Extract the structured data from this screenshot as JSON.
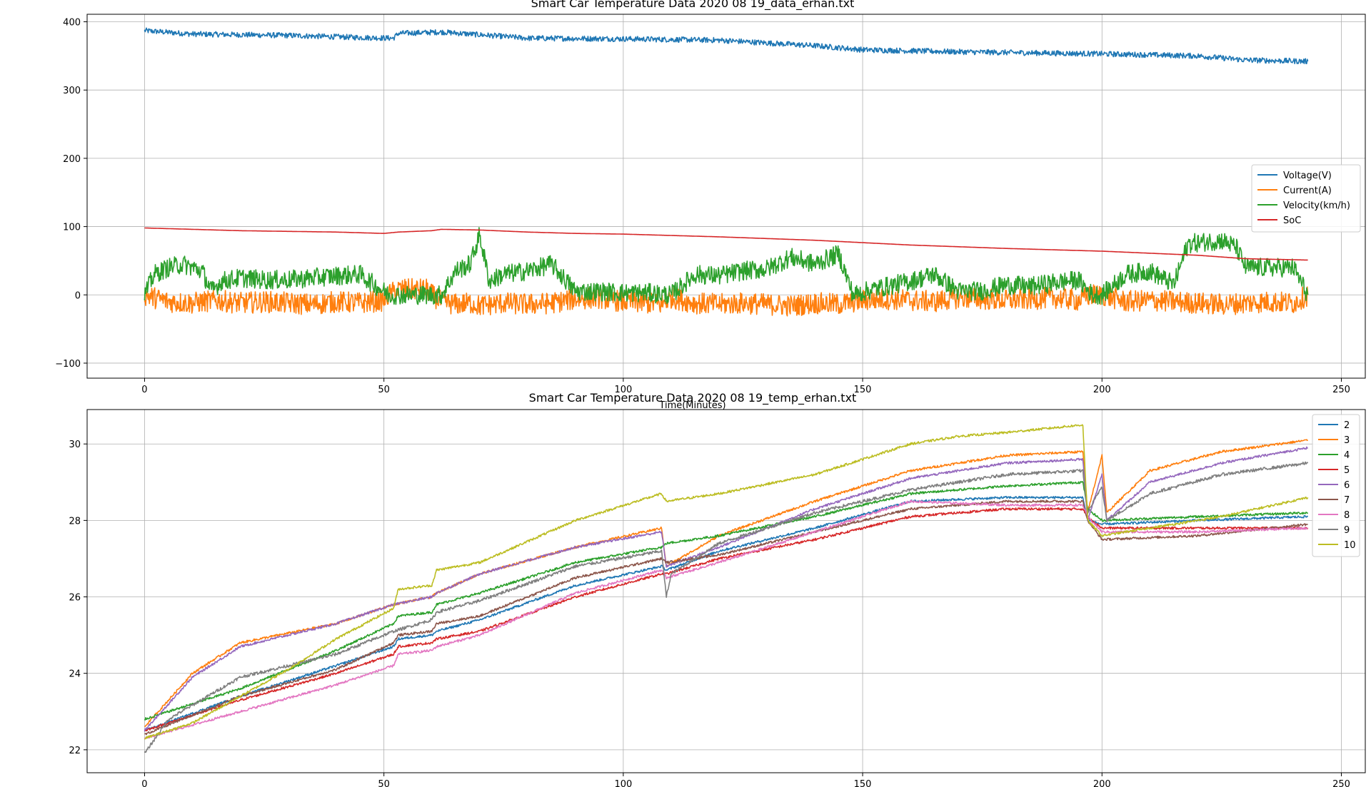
{
  "chart_data": [
    {
      "type": "line",
      "title": "Smart Car Temperature Data 2020 08 19_data_erhan.txt",
      "xlabel": "Time(Minutes)",
      "ylabel": "",
      "xlim": [
        -12,
        255
      ],
      "ylim": [
        -122,
        411
      ],
      "xticks": [
        0,
        50,
        100,
        150,
        200,
        250
      ],
      "yticks": [
        -100,
        0,
        100,
        200,
        300,
        400
      ],
      "ytick_labels": [
        "−100",
        "0",
        "100",
        "200",
        "300",
        "400"
      ],
      "grid": true,
      "legend_position": "center-right",
      "series": [
        {
          "name": "Voltage(V)",
          "color": "#1f77b4",
          "x": [
            0,
            10,
            30,
            45,
            52,
            53,
            62,
            70,
            80,
            100,
            120,
            140,
            150,
            170,
            200,
            220,
            230,
            243
          ],
          "y": [
            387,
            382,
            380,
            377,
            376,
            383,
            385,
            381,
            376,
            375,
            373,
            365,
            359,
            356,
            353,
            350,
            344,
            342
          ],
          "noise": 4
        },
        {
          "name": "Current(A)",
          "color": "#ff7f0e",
          "x": [
            0,
            5,
            10,
            15,
            20,
            25,
            30,
            35,
            40,
            45,
            50,
            51,
            53,
            59,
            60,
            62,
            65,
            68,
            70,
            75,
            80,
            85,
            90,
            95,
            100,
            105,
            108,
            110,
            115,
            120,
            125,
            130,
            135,
            140,
            145,
            150,
            155,
            160,
            165,
            170,
            175,
            180,
            185,
            190,
            195,
            198,
            200,
            205,
            210,
            215,
            220,
            225,
            230,
            235,
            240,
            243
          ],
          "y": [
            0,
            -10,
            -12,
            -8,
            -12,
            -10,
            -12,
            -14,
            -10,
            -12,
            -8,
            0,
            8,
            8,
            0,
            -10,
            -14,
            -12,
            -16,
            -12,
            -14,
            -12,
            -6,
            -4,
            -10,
            -12,
            -14,
            -4,
            -12,
            -14,
            -12,
            -14,
            -16,
            -12,
            -14,
            -8,
            -6,
            -8,
            -10,
            -4,
            -6,
            -8,
            -6,
            -4,
            -8,
            0,
            0,
            -10,
            -8,
            -10,
            -12,
            -14,
            -12,
            -10,
            -12,
            0
          ],
          "noise": 16
        },
        {
          "name": "Velocity(km/h)",
          "color": "#2ca02c",
          "x": [
            0,
            2,
            5,
            8,
            12,
            14,
            16,
            20,
            25,
            30,
            35,
            40,
            45,
            51,
            53,
            62,
            65,
            68,
            70,
            72,
            75,
            80,
            85,
            90,
            95,
            100,
            105,
            110,
            115,
            120,
            125,
            130,
            135,
            140,
            145,
            148,
            152,
            160,
            165,
            170,
            175,
            180,
            185,
            190,
            195,
            198,
            200,
            205,
            210,
            215,
            218,
            225,
            228,
            230,
            235,
            240,
            243
          ],
          "y": [
            0,
            30,
            40,
            45,
            35,
            5,
            20,
            25,
            22,
            22,
            25,
            28,
            30,
            0,
            0,
            0,
            35,
            45,
            88,
            20,
            30,
            35,
            45,
            5,
            5,
            3,
            3,
            0,
            30,
            28,
            35,
            38,
            55,
            45,
            60,
            0,
            8,
            20,
            30,
            5,
            6,
            15,
            12,
            18,
            22,
            0,
            0,
            30,
            35,
            15,
            75,
            80,
            70,
            40,
            40,
            40,
            0
          ],
          "noise": 14
        },
        {
          "name": "SoC",
          "color": "#d62728",
          "x": [
            0,
            10,
            20,
            30,
            40,
            50,
            53,
            60,
            62,
            70,
            80,
            90,
            100,
            120,
            140,
            160,
            180,
            200,
            220,
            230,
            243
          ],
          "y": [
            98,
            96,
            94,
            93,
            92,
            90,
            92,
            94,
            96,
            95,
            92,
            90,
            89,
            85,
            80,
            73,
            68,
            64,
            58,
            53,
            51
          ],
          "noise": 0
        }
      ]
    },
    {
      "type": "line",
      "title": "Smart Car Temperature Data 2020 08 19_temp_erhan.txt",
      "xlabel": "",
      "ylabel": "",
      "xlim": [
        -12,
        255
      ],
      "ylim": [
        21.4,
        30.9
      ],
      "xticks": [
        0,
        50,
        100,
        150,
        200,
        250
      ],
      "yticks": [
        22,
        24,
        26,
        28,
        30
      ],
      "grid": true,
      "legend_position": "upper-right",
      "series": [
        {
          "name": "2",
          "color": "#1f77b4",
          "x": [
            0,
            20,
            40,
            52,
            53,
            60,
            61,
            70,
            90,
            108,
            109,
            120,
            140,
            160,
            180,
            196,
            197,
            200,
            220,
            243
          ],
          "y": [
            22.5,
            23.4,
            24.2,
            24.7,
            24.9,
            25.0,
            25.1,
            25.4,
            26.3,
            26.8,
            26.7,
            27.2,
            27.8,
            28.5,
            28.6,
            28.6,
            28.0,
            27.9,
            28.0,
            28.1
          ],
          "noise": 0.03
        },
        {
          "name": "3",
          "color": "#ff7f0e",
          "x": [
            0,
            10,
            20,
            40,
            52,
            60,
            61,
            70,
            90,
            108,
            109,
            120,
            140,
            160,
            180,
            196,
            197,
            200,
            201,
            210,
            225,
            243
          ],
          "y": [
            22.6,
            24.0,
            24.8,
            25.3,
            25.8,
            26.0,
            26.1,
            26.6,
            27.3,
            27.8,
            26.8,
            27.6,
            28.5,
            29.3,
            29.7,
            29.8,
            28.2,
            29.7,
            28.2,
            29.3,
            29.8,
            30.1
          ],
          "noise": 0.03
        },
        {
          "name": "4",
          "color": "#2ca02c",
          "x": [
            0,
            20,
            40,
            52,
            53,
            60,
            61,
            70,
            90,
            108,
            109,
            120,
            140,
            160,
            180,
            196,
            197,
            200,
            220,
            243
          ],
          "y": [
            22.8,
            23.6,
            24.6,
            25.3,
            25.5,
            25.6,
            25.8,
            26.1,
            26.9,
            27.3,
            27.4,
            27.6,
            28.1,
            28.7,
            28.9,
            29.0,
            28.3,
            28.0,
            28.1,
            28.2
          ],
          "noise": 0.03
        },
        {
          "name": "5",
          "color": "#d62728",
          "x": [
            0,
            20,
            40,
            52,
            53,
            60,
            61,
            70,
            90,
            108,
            109,
            120,
            140,
            160,
            180,
            196,
            197,
            200,
            220,
            243
          ],
          "y": [
            22.5,
            23.3,
            24.0,
            24.5,
            24.7,
            24.8,
            24.9,
            25.1,
            26.0,
            26.6,
            26.6,
            27.0,
            27.5,
            28.1,
            28.3,
            28.3,
            28.1,
            27.8,
            27.8,
            27.8
          ],
          "noise": 0.03
        },
        {
          "name": "6",
          "color": "#9467bd",
          "x": [
            0,
            10,
            20,
            40,
            52,
            60,
            61,
            70,
            90,
            108,
            109,
            120,
            140,
            160,
            180,
            196,
            197,
            200,
            201,
            210,
            225,
            243
          ],
          "y": [
            22.5,
            23.9,
            24.7,
            25.3,
            25.8,
            26.0,
            26.1,
            26.6,
            27.3,
            27.7,
            26.8,
            27.3,
            28.3,
            29.1,
            29.5,
            29.6,
            28.0,
            29.2,
            28.0,
            29.0,
            29.5,
            29.9
          ],
          "noise": 0.03
        },
        {
          "name": "7",
          "color": "#8c564b",
          "x": [
            0,
            20,
            40,
            52,
            53,
            60,
            61,
            70,
            90,
            108,
            109,
            120,
            140,
            160,
            180,
            196,
            197,
            200,
            220,
            243
          ],
          "y": [
            22.4,
            23.4,
            24.1,
            24.8,
            25.0,
            25.1,
            25.3,
            25.5,
            26.5,
            27.0,
            26.9,
            27.1,
            27.7,
            28.3,
            28.5,
            28.5,
            28.0,
            27.5,
            27.6,
            27.9
          ],
          "noise": 0.03
        },
        {
          "name": "8",
          "color": "#e377c2",
          "x": [
            0,
            20,
            40,
            52,
            53,
            60,
            61,
            70,
            90,
            108,
            109,
            120,
            140,
            160,
            180,
            196,
            197,
            200,
            220,
            243
          ],
          "y": [
            22.3,
            23.0,
            23.7,
            24.2,
            24.5,
            24.6,
            24.7,
            25.0,
            26.1,
            26.7,
            26.5,
            26.9,
            27.7,
            28.5,
            28.4,
            28.4,
            28.1,
            27.7,
            27.7,
            27.8
          ],
          "noise": 0.03
        },
        {
          "name": "9",
          "color": "#7f7f7f",
          "x": [
            0,
            5,
            20,
            40,
            52,
            60,
            61,
            70,
            90,
            108,
            109,
            110,
            120,
            140,
            160,
            180,
            196,
            197,
            200,
            201,
            210,
            225,
            243
          ],
          "y": [
            21.9,
            22.8,
            23.9,
            24.5,
            25.1,
            25.4,
            25.6,
            25.9,
            26.8,
            27.2,
            26.0,
            26.6,
            27.4,
            28.2,
            28.8,
            29.2,
            29.3,
            28.2,
            28.9,
            28.0,
            28.7,
            29.2,
            29.5
          ],
          "noise": 0.04
        },
        {
          "name": "10",
          "color": "#bcbd22",
          "x": [
            0,
            10,
            20,
            30,
            40,
            52,
            53,
            60,
            61,
            70,
            90,
            108,
            109,
            120,
            140,
            160,
            170,
            180,
            196,
            197,
            200,
            210,
            225,
            243
          ],
          "y": [
            22.3,
            22.7,
            23.4,
            24.1,
            24.9,
            25.7,
            26.2,
            26.3,
            26.7,
            26.9,
            28.0,
            28.7,
            28.5,
            28.7,
            29.2,
            30.0,
            30.2,
            30.3,
            30.5,
            28.0,
            27.6,
            27.8,
            28.1,
            28.6
          ],
          "noise": 0.03
        }
      ]
    }
  ]
}
